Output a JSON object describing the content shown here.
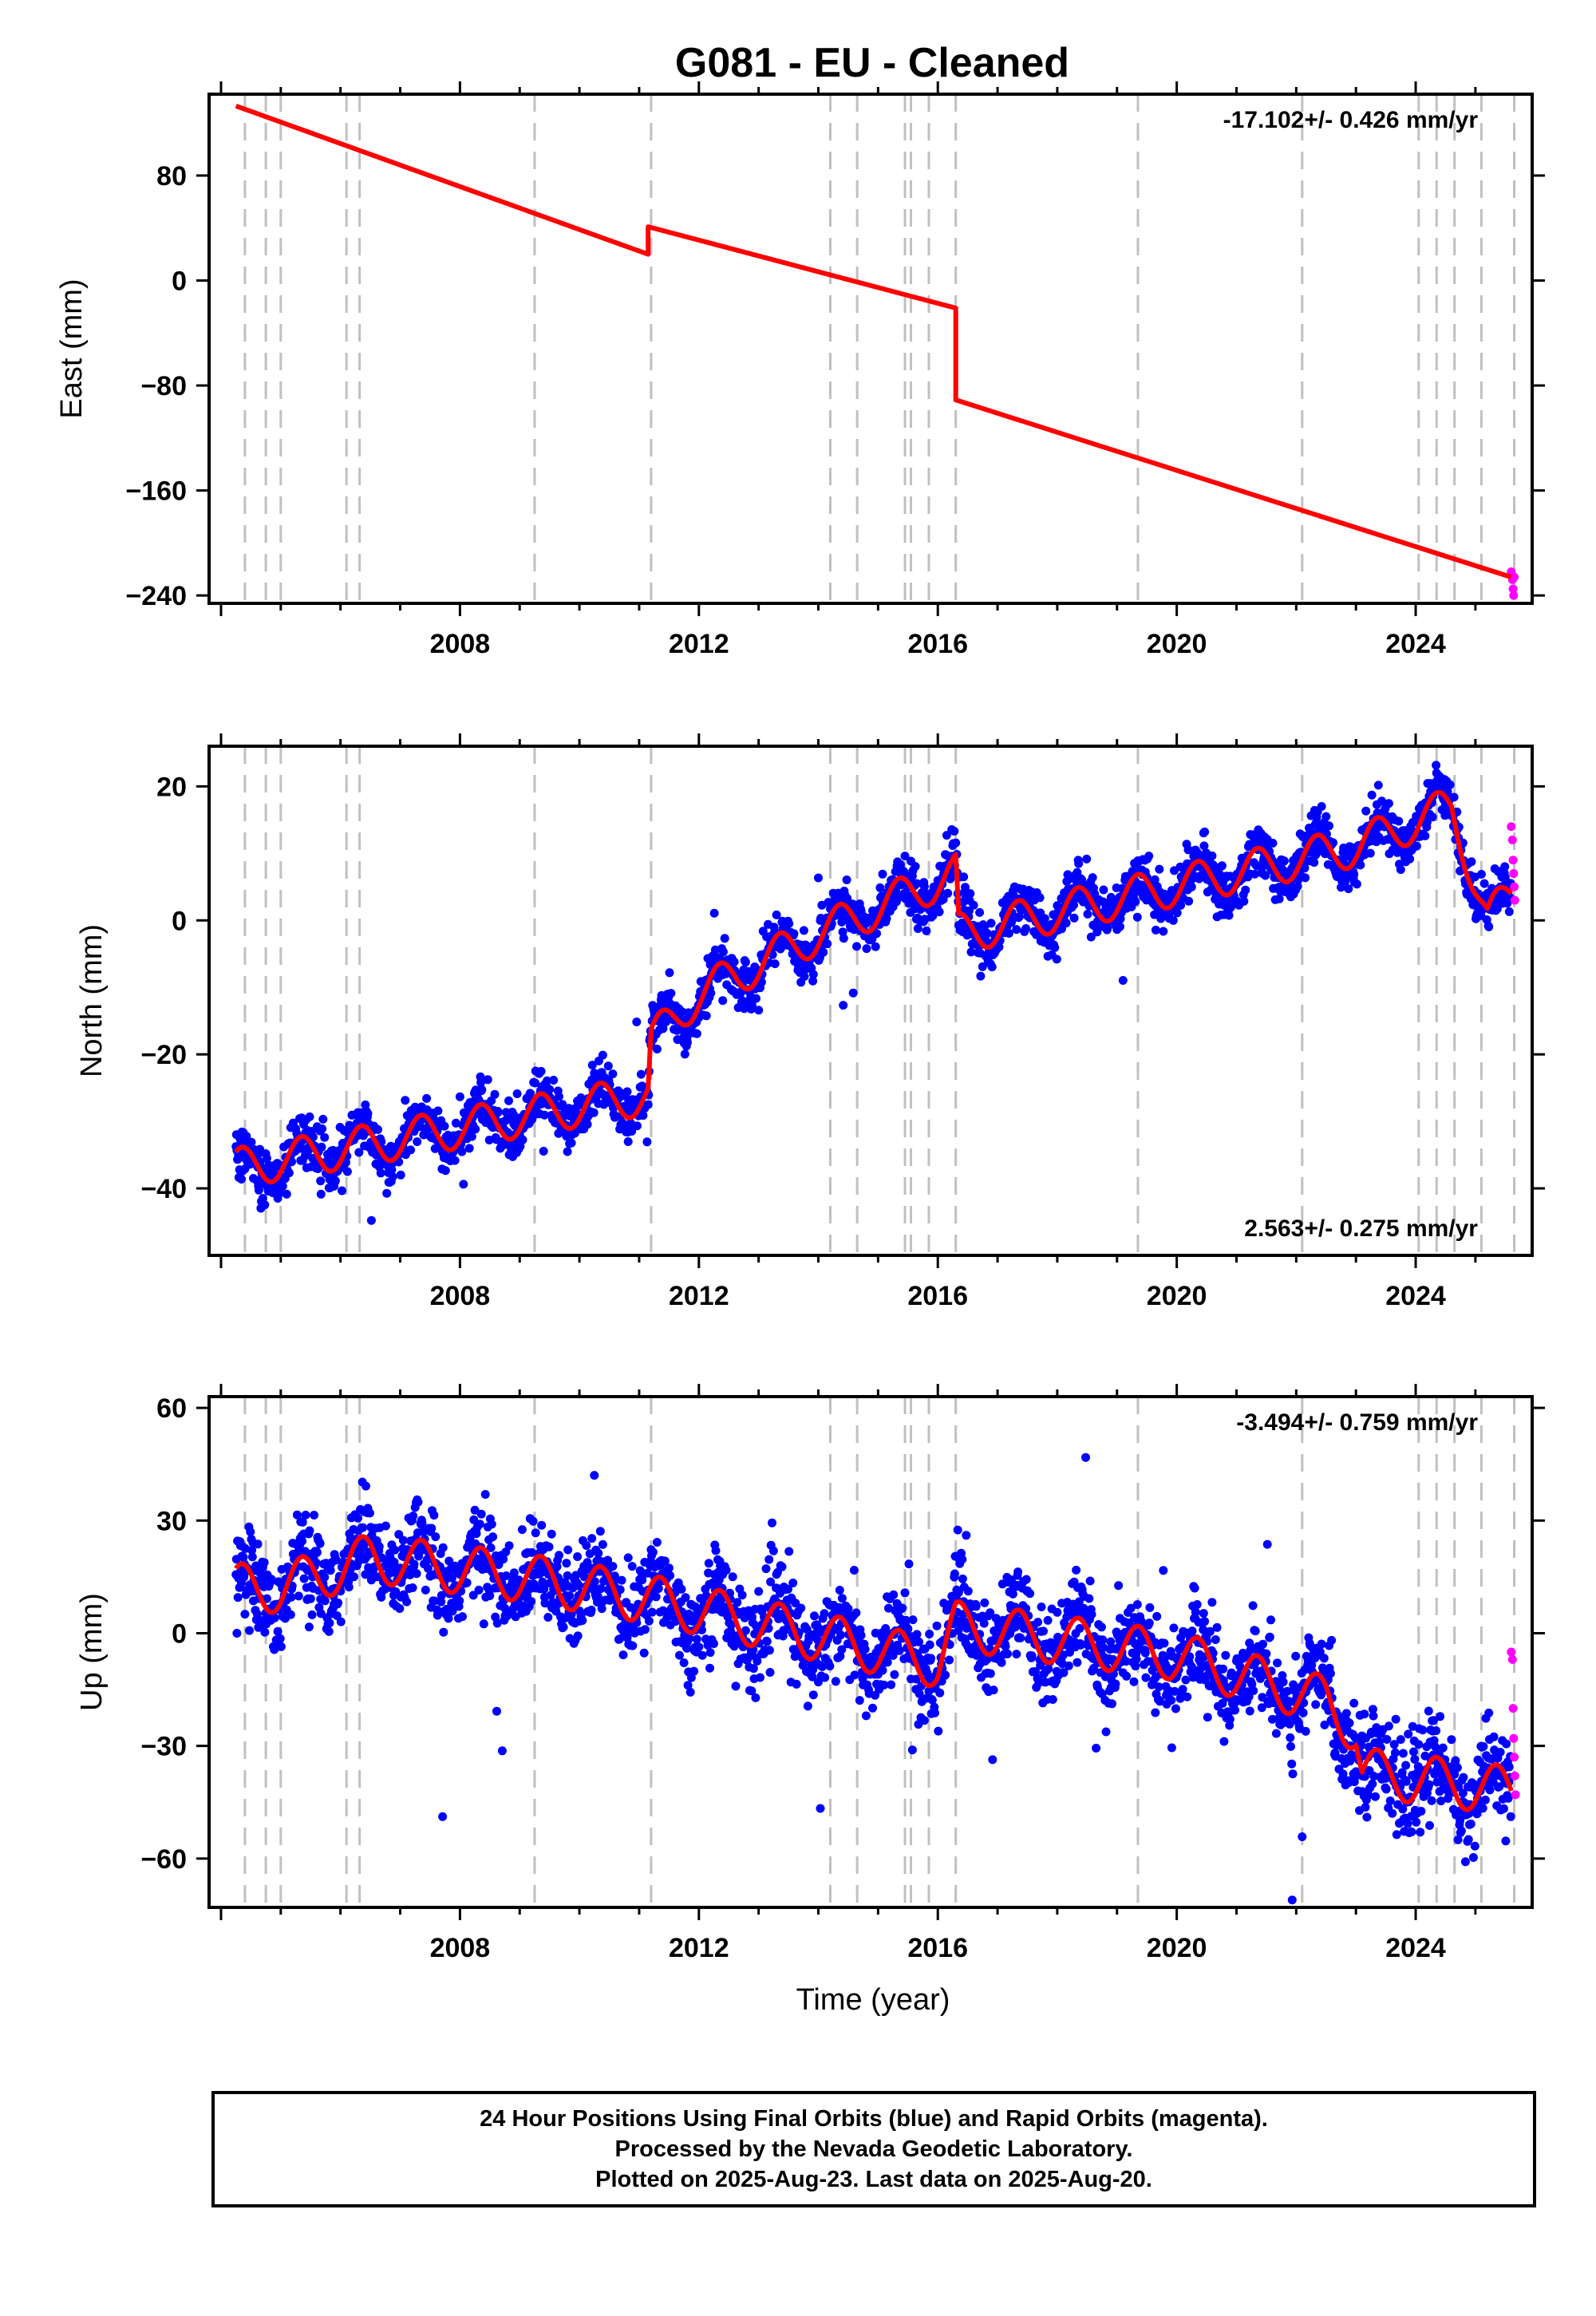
{
  "chart_data": [
    {
      "type": "scatter",
      "panel": "east",
      "title": "G081  - EU - Cleaned",
      "ylabel": "East (mm)",
      "xlabel": "",
      "xlim": [
        2003.8,
        2025.95
      ],
      "ylim": [
        -246,
        142
      ],
      "yticks": [
        80,
        0,
        -80,
        -160,
        -240
      ],
      "xticks": [
        2008,
        2012,
        2016,
        2020,
        2024
      ],
      "rate_text": "-17.102+/- 0.426 mm/yr",
      "rate_position": "top-right",
      "grid": false,
      "series": [
        {
          "name": "Final Orbits",
          "color": "#0000ff",
          "kind": "points",
          "segments": [
            {
              "x0": 2004.25,
              "x1": 2011.15,
              "y0": 133,
              "y1": 22,
              "noise": 2.6
            },
            {
              "x0": 2011.15,
              "x1": 2016.3,
              "y0": 44,
              "y1": -22,
              "noise": 2.6
            },
            {
              "x0": 2016.3,
              "x1": 2025.6,
              "y0": -88,
              "y1": -228,
              "noise": 2.6
            }
          ]
        },
        {
          "name": "Rapid Orbits",
          "color": "#ff00ff",
          "kind": "points",
          "x": [
            2025.6,
            2025.62,
            2025.63,
            2025.64,
            2025.65
          ],
          "y": [
            -222,
            -228,
            -235,
            -240,
            -226
          ]
        },
        {
          "name": "Model",
          "color": "#ff0000",
          "kind": "line",
          "segments": [
            {
              "x0": 2004.25,
              "x1": 2011.15,
              "y0": 133,
              "y1": 20
            },
            {
              "x0": 2011.15,
              "x1": 2016.3,
              "y0": 41,
              "y1": -21
            },
            {
              "x0": 2016.3,
              "x1": 2025.6,
              "y0": -91,
              "y1": -226
            }
          ]
        }
      ]
    },
    {
      "type": "scatter",
      "panel": "north",
      "title": "",
      "ylabel": "North (mm)",
      "xlabel": "",
      "xlim": [
        2003.8,
        2025.95
      ],
      "ylim": [
        -50,
        26
      ],
      "yticks": [
        20,
        0,
        -20,
        -40
      ],
      "xticks": [
        2008,
        2012,
        2016,
        2020,
        2024
      ],
      "rate_text": "2.563+/- 0.275 mm/yr",
      "rate_position": "bottom-right",
      "grid": false,
      "series": [
        {
          "name": "Final Orbits",
          "color": "#0000ff",
          "kind": "points",
          "trend": [
            [
              2004.25,
              -37
            ],
            [
              2011.15,
              -26
            ],
            [
              2011.2,
              -18
            ],
            [
              2012.0,
              -11
            ],
            [
              2014.0,
              -2
            ],
            [
              2016.3,
              7
            ],
            [
              2016.35,
              -2
            ],
            [
              2023.0,
              11
            ],
            [
              2024.6,
              17
            ],
            [
              2025.2,
              0
            ],
            [
              2025.6,
              4
            ]
          ],
          "seasonal_amplitude": 3.0,
          "noise": 1.8
        },
        {
          "name": "Rapid Orbits",
          "color": "#ff00ff",
          "kind": "points",
          "x": [
            2025.6,
            2025.62,
            2025.63,
            2025.64,
            2025.65,
            2025.66
          ],
          "y": [
            14,
            12,
            9,
            7,
            5,
            3
          ]
        },
        {
          "name": "Model",
          "color": "#ff0000",
          "kind": "line",
          "trend": [
            [
              2004.25,
              -37
            ],
            [
              2011.15,
              -26
            ],
            [
              2011.2,
              -18
            ],
            [
              2012.0,
              -11
            ],
            [
              2014.0,
              -2
            ],
            [
              2016.3,
              7
            ],
            [
              2016.35,
              -2
            ],
            [
              2023.0,
              11
            ],
            [
              2024.6,
              17
            ],
            [
              2025.2,
              0
            ],
            [
              2025.6,
              4
            ]
          ],
          "seasonal_amplitude": 3.0
        }
      ]
    },
    {
      "type": "scatter",
      "panel": "up",
      "title": "",
      "ylabel": "Up (mm)",
      "xlabel": "Time (year)",
      "xlim": [
        2003.8,
        2025.95
      ],
      "ylim": [
        -73,
        63
      ],
      "yticks": [
        60,
        30,
        0,
        -30,
        -60
      ],
      "xticks": [
        2008,
        2012,
        2016,
        2020,
        2024
      ],
      "rate_text": "-3.494+/- 0.759 mm/yr",
      "rate_position": "top-right",
      "grid": false,
      "series": [
        {
          "name": "Final Orbits",
          "color": "#0000ff",
          "kind": "points",
          "trend": [
            [
              2004.25,
              12
            ],
            [
              2005.0,
              12
            ],
            [
              2006.5,
              20
            ],
            [
              2009.0,
              15
            ],
            [
              2011.2,
              9
            ],
            [
              2016.0,
              -8
            ],
            [
              2016.3,
              2
            ],
            [
              2020.0,
              -6
            ],
            [
              2022.5,
              -18
            ],
            [
              2023.0,
              -26
            ],
            [
              2023.1,
              -37
            ],
            [
              2025.6,
              -42
            ]
          ],
          "seasonal_amplitude": 6.5,
          "noise": 6.0
        },
        {
          "name": "Rapid Orbits",
          "color": "#ff00ff",
          "kind": "points",
          "x": [
            2025.6,
            2025.62,
            2025.63,
            2025.64,
            2025.65,
            2025.66,
            2025.67
          ],
          "y": [
            -5,
            -7,
            -20,
            -28,
            -33,
            -38,
            -43
          ]
        },
        {
          "name": "Model",
          "color": "#ff0000",
          "kind": "line",
          "trend": [
            [
              2004.25,
              12
            ],
            [
              2005.0,
              12
            ],
            [
              2006.5,
              20
            ],
            [
              2009.0,
              15
            ],
            [
              2011.2,
              9
            ],
            [
              2016.0,
              -8
            ],
            [
              2016.3,
              2
            ],
            [
              2020.0,
              -6
            ],
            [
              2022.5,
              -18
            ],
            [
              2023.0,
              -26
            ],
            [
              2023.1,
              -37
            ],
            [
              2025.6,
              -42
            ]
          ],
          "seasonal_amplitude": 6.5
        }
      ]
    }
  ],
  "event_lines_x": [
    2004.4,
    2004.75,
    2005.0,
    2006.1,
    2006.32,
    2009.25,
    2011.2,
    2014.2,
    2014.65,
    2015.45,
    2015.55,
    2015.85,
    2016.3,
    2019.35,
    2022.1,
    2024.05,
    2024.35,
    2024.65,
    2025.1,
    2025.65
  ],
  "colors": {
    "final_orbits": "#0000ff",
    "rapid_orbits": "#ff00ff",
    "model": "#ff0000",
    "event_lines": "#c0c0c0"
  },
  "footer": {
    "line1": "24 Hour Positions Using Final Orbits (blue) and Rapid Orbits (magenta).",
    "line2": "Processed by the Nevada Geodetic Laboratory.",
    "line3": "Plotted on 2025-Aug-23. Last data on 2025-Aug-20."
  }
}
